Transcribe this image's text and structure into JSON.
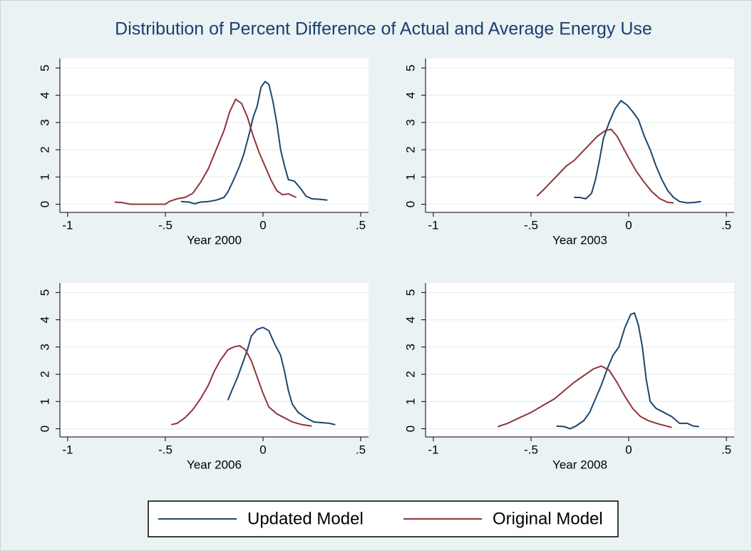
{
  "title": "Distribution of Percent Difference of Actual and Average Energy Use",
  "chart_data": [
    {
      "type": "line",
      "xlabel": "Year 2000",
      "xlim": [
        -1.04,
        0.54
      ],
      "ylim": [
        -0.3,
        5.35
      ],
      "xticks": [
        -1,
        {
          "value": -0.5,
          "label": "-.5"
        },
        0,
        {
          "value": 0.5,
          "label": ".5"
        }
      ],
      "yticks": [
        0,
        1,
        2,
        3,
        4,
        5
      ],
      "grid": true,
      "series": [
        {
          "name": "Updated Model",
          "color": "#1a476f",
          "x": [
            -0.42,
            -0.38,
            -0.35,
            -0.32,
            -0.28,
            -0.24,
            -0.2,
            -0.18,
            -0.15,
            -0.12,
            -0.1,
            -0.07,
            -0.05,
            -0.03,
            -0.01,
            0.01,
            0.03,
            0.05,
            0.07,
            0.09,
            0.11,
            0.13,
            0.16,
            0.19,
            0.22,
            0.25,
            0.29,
            0.33
          ],
          "values": [
            0.1,
            0.08,
            0.02,
            0.08,
            0.1,
            0.15,
            0.25,
            0.45,
            0.9,
            1.4,
            1.8,
            2.6,
            3.2,
            3.6,
            4.3,
            4.5,
            4.4,
            3.8,
            3.0,
            2.0,
            1.4,
            0.9,
            0.85,
            0.6,
            0.3,
            0.2,
            0.18,
            0.15
          ]
        },
        {
          "name": "Original Model",
          "color": "#90353b",
          "x": [
            -0.76,
            -0.72,
            -0.68,
            -0.6,
            -0.5,
            -0.48,
            -0.44,
            -0.4,
            -0.36,
            -0.32,
            -0.28,
            -0.24,
            -0.2,
            -0.17,
            -0.14,
            -0.11,
            -0.08,
            -0.05,
            -0.02,
            0.01,
            0.04,
            0.07,
            0.1,
            0.13,
            0.17
          ],
          "values": [
            0.08,
            0.06,
            0.0,
            0.0,
            0.0,
            0.1,
            0.2,
            0.25,
            0.4,
            0.8,
            1.3,
            2.0,
            2.7,
            3.4,
            3.85,
            3.7,
            3.2,
            2.5,
            1.9,
            1.4,
            0.9,
            0.5,
            0.35,
            0.38,
            0.25
          ]
        }
      ]
    },
    {
      "type": "line",
      "xlabel": "Year 2003",
      "xlim": [
        -1.04,
        0.54
      ],
      "ylim": [
        -0.3,
        5.35
      ],
      "xticks": [
        -1,
        {
          "value": -0.5,
          "label": "-.5"
        },
        0,
        {
          "value": 0.5,
          "label": ".5"
        }
      ],
      "yticks": [
        0,
        1,
        2,
        3,
        4,
        5
      ],
      "grid": true,
      "series": [
        {
          "name": "Updated Model",
          "color": "#1a476f",
          "x": [
            -0.28,
            -0.25,
            -0.22,
            -0.19,
            -0.17,
            -0.15,
            -0.13,
            -0.1,
            -0.07,
            -0.04,
            -0.01,
            0.02,
            0.05,
            0.08,
            0.11,
            0.14,
            0.17,
            0.2,
            0.23,
            0.26,
            0.3,
            0.34,
            0.37
          ],
          "values": [
            0.25,
            0.25,
            0.2,
            0.4,
            0.9,
            1.6,
            2.4,
            3.0,
            3.5,
            3.8,
            3.65,
            3.4,
            3.1,
            2.5,
            2.0,
            1.4,
            0.9,
            0.5,
            0.25,
            0.1,
            0.05,
            0.07,
            0.1
          ]
        },
        {
          "name": "Original Model",
          "color": "#90353b",
          "x": [
            -0.47,
            -0.44,
            -0.4,
            -0.36,
            -0.32,
            -0.28,
            -0.24,
            -0.2,
            -0.16,
            -0.12,
            -0.09,
            -0.06,
            -0.03,
            0.0,
            0.04,
            0.08,
            0.12,
            0.16,
            0.2,
            0.23
          ],
          "values": [
            0.3,
            0.5,
            0.8,
            1.1,
            1.4,
            1.6,
            1.9,
            2.2,
            2.5,
            2.7,
            2.75,
            2.5,
            2.1,
            1.7,
            1.2,
            0.8,
            0.45,
            0.2,
            0.07,
            0.05
          ]
        }
      ]
    },
    {
      "type": "line",
      "xlabel": "Year 2006",
      "xlim": [
        -1.04,
        0.54
      ],
      "ylim": [
        -0.3,
        5.35
      ],
      "xticks": [
        -1,
        {
          "value": -0.5,
          "label": "-.5"
        },
        0,
        {
          "value": 0.5,
          "label": ".5"
        }
      ],
      "yticks": [
        0,
        1,
        2,
        3,
        4,
        5
      ],
      "grid": true,
      "series": [
        {
          "name": "Updated Model",
          "color": "#1a476f",
          "x": [
            -0.18,
            -0.16,
            -0.13,
            -0.11,
            -0.08,
            -0.06,
            -0.03,
            0.0,
            0.03,
            0.06,
            0.09,
            0.11,
            0.13,
            0.15,
            0.18,
            0.22,
            0.26,
            0.31,
            0.34,
            0.37
          ],
          "values": [
            1.05,
            1.4,
            1.9,
            2.3,
            2.9,
            3.4,
            3.65,
            3.72,
            3.6,
            3.1,
            2.7,
            2.1,
            1.4,
            0.9,
            0.6,
            0.4,
            0.25,
            0.22,
            0.2,
            0.15
          ]
        },
        {
          "name": "Original Model",
          "color": "#90353b",
          "x": [
            -0.47,
            -0.44,
            -0.4,
            -0.36,
            -0.32,
            -0.28,
            -0.25,
            -0.22,
            -0.18,
            -0.15,
            -0.12,
            -0.09,
            -0.06,
            -0.03,
            0.0,
            0.03,
            0.07,
            0.11,
            0.15,
            0.2,
            0.25
          ],
          "values": [
            0.15,
            0.2,
            0.4,
            0.7,
            1.1,
            1.6,
            2.1,
            2.5,
            2.9,
            3.0,
            3.05,
            2.9,
            2.5,
            1.9,
            1.3,
            0.8,
            0.55,
            0.4,
            0.25,
            0.15,
            0.1
          ]
        }
      ]
    },
    {
      "type": "line",
      "xlabel": "Year 2008",
      "xlim": [
        -1.04,
        0.54
      ],
      "ylim": [
        -0.3,
        5.35
      ],
      "xticks": [
        -1,
        {
          "value": -0.5,
          "label": "-.5"
        },
        0,
        {
          "value": 0.5,
          "label": ".5"
        }
      ],
      "yticks": [
        0,
        1,
        2,
        3,
        4,
        5
      ],
      "grid": true,
      "series": [
        {
          "name": "Updated Model",
          "color": "#1a476f",
          "x": [
            -0.37,
            -0.33,
            -0.3,
            -0.27,
            -0.23,
            -0.2,
            -0.17,
            -0.14,
            -0.11,
            -0.08,
            -0.05,
            -0.02,
            0.01,
            0.03,
            0.05,
            0.07,
            0.09,
            0.11,
            0.14,
            0.18,
            0.22,
            0.26,
            0.3,
            0.33,
            0.36
          ],
          "values": [
            0.1,
            0.08,
            0.0,
            0.1,
            0.3,
            0.6,
            1.1,
            1.6,
            2.2,
            2.7,
            3.0,
            3.7,
            4.2,
            4.25,
            3.8,
            3.0,
            1.8,
            1.0,
            0.75,
            0.6,
            0.45,
            0.2,
            0.2,
            0.1,
            0.08
          ]
        },
        {
          "name": "Original Model",
          "color": "#90353b",
          "x": [
            -0.67,
            -0.62,
            -0.56,
            -0.5,
            -0.44,
            -0.38,
            -0.33,
            -0.28,
            -0.23,
            -0.18,
            -0.14,
            -0.1,
            -0.06,
            -0.02,
            0.02,
            0.06,
            0.1,
            0.15,
            0.22
          ],
          "values": [
            0.08,
            0.2,
            0.4,
            0.6,
            0.85,
            1.1,
            1.4,
            1.7,
            1.95,
            2.2,
            2.3,
            2.15,
            1.7,
            1.2,
            0.75,
            0.45,
            0.3,
            0.18,
            0.05
          ]
        }
      ]
    }
  ]
}
